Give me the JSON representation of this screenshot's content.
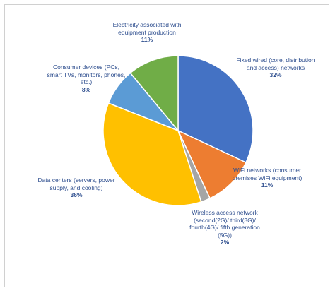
{
  "chart_data": {
    "type": "pie",
    "categories": [
      "Fixed wired (core, distribution and access) networks",
      "WiFi networks (consumer premises WiFi equipment)",
      "Wireless access network (second(2G)/ third(3G)/ fourth(4G)/ fifth generation (5G))",
      "Data centers (servers, power supply, and cooling)",
      "Consumer devices (PCs, smart TVs, monitors, phones, etc.)",
      "Electricity associated with equipment production"
    ],
    "values": [
      32,
      11,
      2,
      36,
      8,
      11
    ],
    "value_labels": [
      "32%",
      "11%",
      "2%",
      "36%",
      "8%",
      "11%"
    ],
    "colors": [
      "#4472c4",
      "#ed7d31",
      "#a5a5a5",
      "#ffc000",
      "#5b9bd5",
      "#70ad47"
    ]
  }
}
